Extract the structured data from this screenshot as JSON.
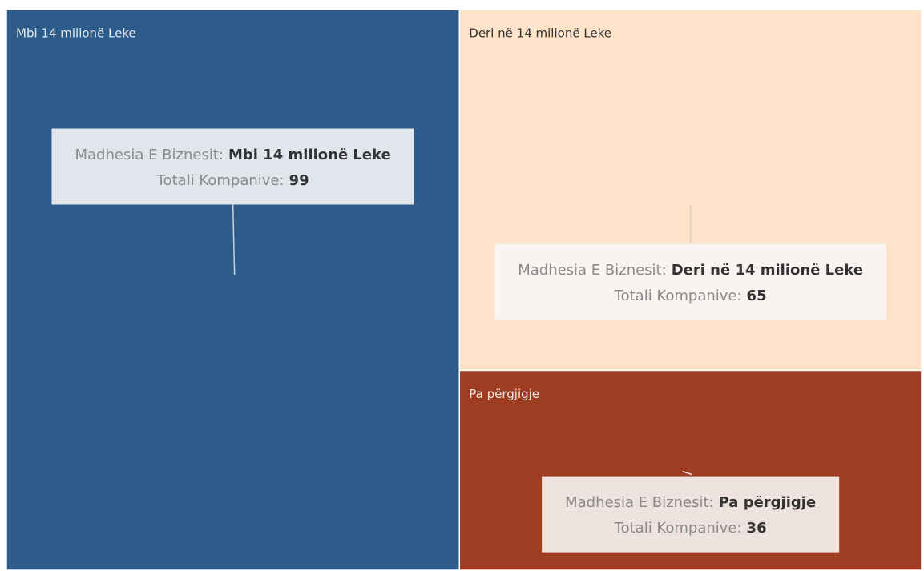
{
  "chart_data": {
    "type": "treemap",
    "categories": [
      "Mbi 14 milionë Leke",
      "Deri në 14 milionë Leke",
      "Pa përgjigje"
    ],
    "values": [
      99,
      65,
      36
    ],
    "colors": [
      "#2e5c8a",
      "#fde3c9",
      "#9f3d22"
    ],
    "tooltip_labels": {
      "category": "Madhesia E Biznesit:",
      "value": "Totali Kompanive:"
    }
  }
}
